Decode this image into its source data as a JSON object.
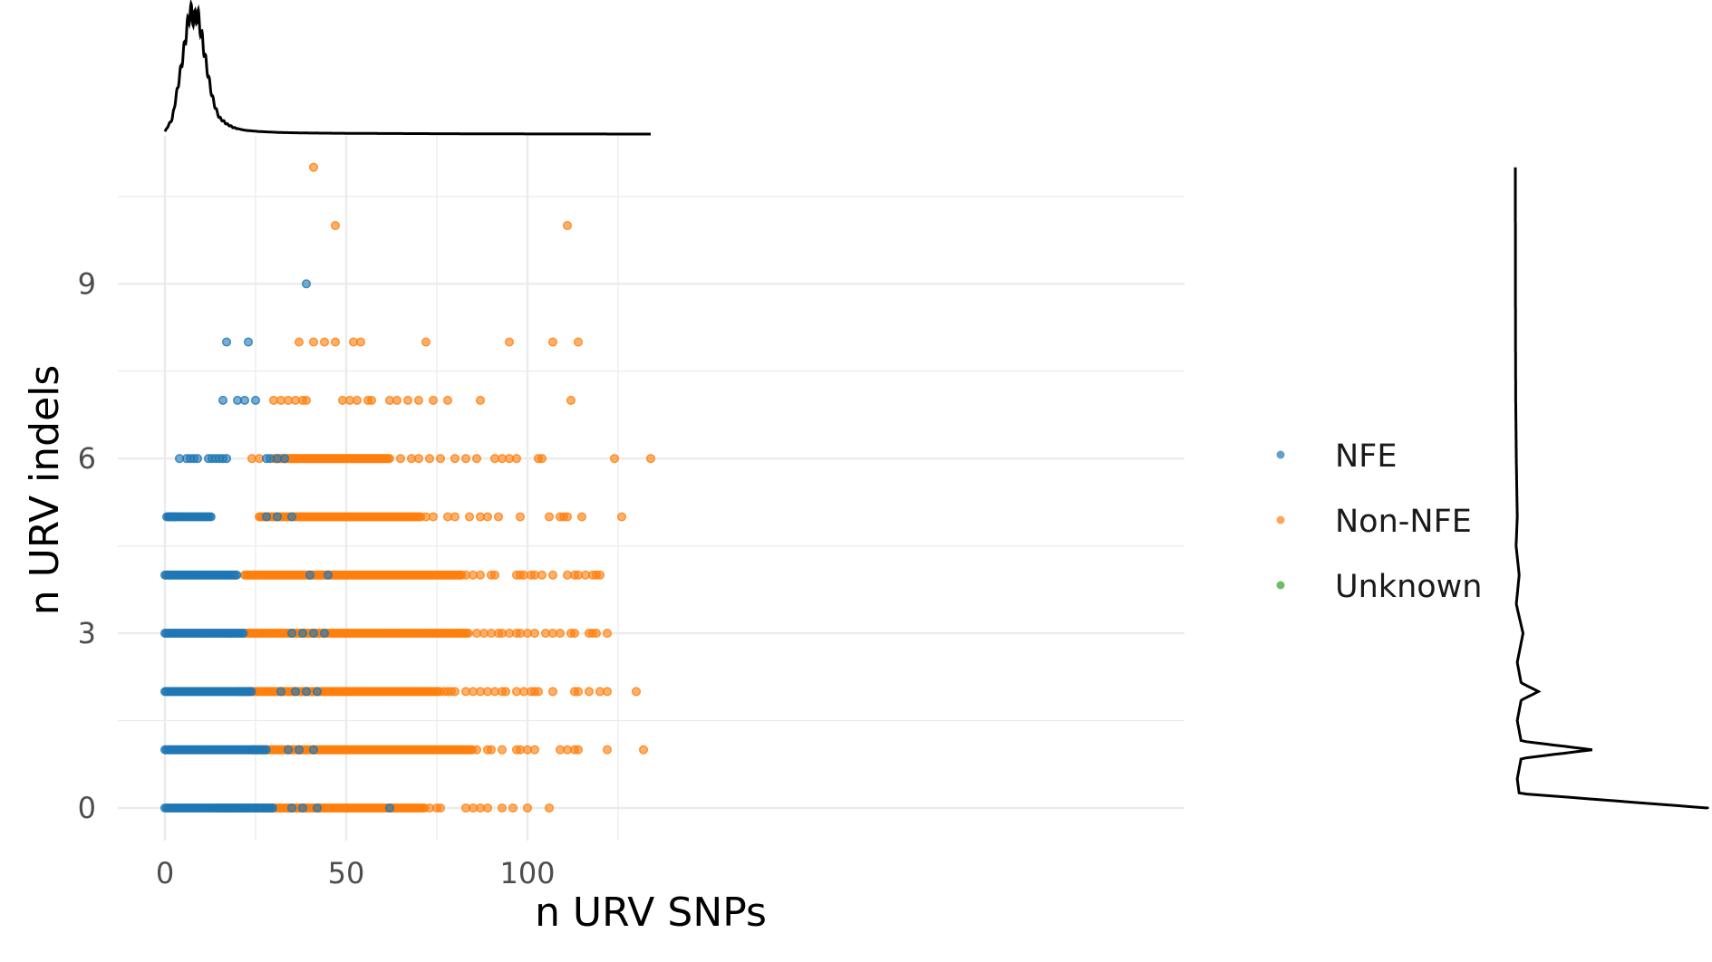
{
  "colors": {
    "NFE": "#1f77b4",
    "Non-NFE": "#ff7f0e",
    "Unknown": "#2ca02c",
    "grid": "#ebebeb"
  },
  "chart_data": {
    "type": "scatter",
    "title": "",
    "xlabel": "n URV SNPs",
    "ylabel": "n URV indels",
    "xlim": [
      -7,
      141
    ],
    "ylim": [
      -0.6,
      11.4
    ],
    "xticks": [
      0,
      50,
      100
    ],
    "xtick_labels": [
      "0",
      "50",
      "100"
    ],
    "yticks": [
      0,
      3,
      6,
      9
    ],
    "ytick_labels": [
      "0",
      "3",
      "6",
      "9"
    ],
    "grid": true,
    "legend": {
      "position": "right",
      "entries": [
        "NFE",
        "Non-NFE",
        "Unknown"
      ]
    },
    "marginals": {
      "top": "density of n URV SNPs",
      "right": "density of n URV indels"
    },
    "series": [
      {
        "name": "NFE",
        "color": "#1f77b4",
        "bands": [
          {
            "y": 0,
            "from": 0,
            "to": 30
          },
          {
            "y": 1,
            "from": 0,
            "to": 28
          },
          {
            "y": 2,
            "from": 0,
            "to": 24
          },
          {
            "y": 3,
            "from": 0,
            "to": 22
          },
          {
            "y": 4,
            "from": 0,
            "to": 20
          },
          {
            "y": 5,
            "from": 1,
            "to": 13
          }
        ],
        "points": [
          [
            0.5,
            5
          ],
          [
            1,
            5
          ],
          [
            1.5,
            5
          ],
          [
            2,
            5
          ],
          [
            3,
            5
          ],
          [
            4,
            6
          ],
          [
            6,
            6
          ],
          [
            7,
            6
          ],
          [
            8,
            6
          ],
          [
            9,
            6
          ],
          [
            12,
            6
          ],
          [
            13,
            6
          ],
          [
            14,
            6
          ],
          [
            15,
            6
          ],
          [
            16,
            6
          ],
          [
            17,
            6
          ],
          [
            16,
            7
          ],
          [
            20,
            7
          ],
          [
            22,
            7
          ],
          [
            25,
            7
          ],
          [
            17,
            8
          ],
          [
            23,
            8
          ],
          [
            39,
            9
          ],
          [
            28,
            6
          ],
          [
            29,
            6
          ],
          [
            31,
            6
          ],
          [
            33,
            6
          ],
          [
            28,
            5
          ],
          [
            31,
            5
          ],
          [
            35,
            5
          ],
          [
            35,
            3
          ],
          [
            38,
            3
          ],
          [
            41,
            3
          ],
          [
            44,
            3
          ],
          [
            32,
            2
          ],
          [
            36,
            2
          ],
          [
            39,
            2
          ],
          [
            42,
            2
          ],
          [
            34,
            1
          ],
          [
            37,
            1
          ],
          [
            41,
            1
          ],
          [
            35,
            0
          ],
          [
            38,
            0
          ],
          [
            42,
            0
          ],
          [
            62,
            0
          ],
          [
            45,
            4
          ],
          [
            40,
            4
          ]
        ]
      },
      {
        "name": "Non-NFE",
        "color": "#ff7f0e",
        "bands": [
          {
            "y": 0,
            "from": 14,
            "to": 72
          },
          {
            "y": 1,
            "from": 24,
            "to": 85
          },
          {
            "y": 2,
            "from": 20,
            "to": 76
          },
          {
            "y": 3,
            "from": 22,
            "to": 84
          },
          {
            "y": 4,
            "from": 22,
            "to": 82
          },
          {
            "y": 5,
            "from": 26,
            "to": 71
          },
          {
            "y": 6,
            "from": 30,
            "to": 62
          }
        ],
        "points": [
          [
            41,
            11
          ],
          [
            47,
            10
          ],
          [
            111,
            10
          ],
          [
            37,
            8
          ],
          [
            41,
            8
          ],
          [
            44,
            8
          ],
          [
            47,
            8
          ],
          [
            52,
            8
          ],
          [
            54,
            8
          ],
          [
            72,
            8
          ],
          [
            95,
            8
          ],
          [
            107,
            8
          ],
          [
            114,
            8
          ],
          [
            30,
            7
          ],
          [
            32,
            7
          ],
          [
            34,
            7
          ],
          [
            36,
            7
          ],
          [
            38,
            7
          ],
          [
            39,
            7
          ],
          [
            49,
            7
          ],
          [
            51,
            7
          ],
          [
            53,
            7
          ],
          [
            56,
            7
          ],
          [
            57,
            7
          ],
          [
            62,
            7
          ],
          [
            64,
            7
          ],
          [
            67,
            7
          ],
          [
            70,
            7
          ],
          [
            74,
            7
          ],
          [
            78,
            7
          ],
          [
            87,
            7
          ],
          [
            112,
            7
          ],
          [
            24,
            6
          ],
          [
            26,
            6
          ],
          [
            65,
            6
          ],
          [
            68,
            6
          ],
          [
            70,
            6
          ],
          [
            73,
            6
          ],
          [
            76,
            6
          ],
          [
            80,
            6
          ],
          [
            83,
            6
          ],
          [
            86,
            6
          ],
          [
            91,
            6
          ],
          [
            93,
            6
          ],
          [
            95,
            6
          ],
          [
            97,
            6
          ],
          [
            103,
            6
          ],
          [
            104,
            6
          ],
          [
            124,
            6
          ],
          [
            134,
            6
          ],
          [
            72,
            5
          ],
          [
            74,
            5
          ],
          [
            78,
            5
          ],
          [
            80,
            5
          ],
          [
            84,
            5
          ],
          [
            87,
            5
          ],
          [
            89,
            5
          ],
          [
            92,
            5
          ],
          [
            98,
            5
          ],
          [
            106,
            5
          ],
          [
            109,
            5
          ],
          [
            110,
            5
          ],
          [
            111,
            5
          ],
          [
            115,
            5
          ],
          [
            126,
            5
          ],
          [
            83,
            4
          ],
          [
            85,
            4
          ],
          [
            87,
            4
          ],
          [
            90,
            4
          ],
          [
            91,
            4
          ],
          [
            97,
            4
          ],
          [
            98,
            4
          ],
          [
            99,
            4
          ],
          [
            101,
            4
          ],
          [
            102,
            4
          ],
          [
            104,
            4
          ],
          [
            107,
            4
          ],
          [
            111,
            4
          ],
          [
            113,
            4
          ],
          [
            114,
            4
          ],
          [
            116,
            4
          ],
          [
            118,
            4
          ],
          [
            119,
            4
          ],
          [
            120,
            4
          ],
          [
            86,
            3
          ],
          [
            88,
            3
          ],
          [
            90,
            3
          ],
          [
            92,
            3
          ],
          [
            93,
            3
          ],
          [
            95,
            3
          ],
          [
            97,
            3
          ],
          [
            98,
            3
          ],
          [
            100,
            3
          ],
          [
            102,
            3
          ],
          [
            105,
            3
          ],
          [
            107,
            3
          ],
          [
            109,
            3
          ],
          [
            112,
            3
          ],
          [
            113,
            3
          ],
          [
            117,
            3
          ],
          [
            118,
            3
          ],
          [
            119,
            3
          ],
          [
            122,
            3
          ],
          [
            77,
            2
          ],
          [
            78,
            2
          ],
          [
            79,
            2
          ],
          [
            80,
            2
          ],
          [
            83,
            2
          ],
          [
            85,
            2
          ],
          [
            87,
            2
          ],
          [
            89,
            2
          ],
          [
            91,
            2
          ],
          [
            93,
            2
          ],
          [
            94,
            2
          ],
          [
            97,
            2
          ],
          [
            99,
            2
          ],
          [
            101,
            2
          ],
          [
            102,
            2
          ],
          [
            103,
            2
          ],
          [
            107,
            2
          ],
          [
            113,
            2
          ],
          [
            114,
            2
          ],
          [
            117,
            2
          ],
          [
            120,
            2
          ],
          [
            122,
            2
          ],
          [
            130,
            2
          ],
          [
            86,
            1
          ],
          [
            89,
            1
          ],
          [
            90,
            1
          ],
          [
            93,
            1
          ],
          [
            97,
            1
          ],
          [
            98,
            1
          ],
          [
            100,
            1
          ],
          [
            102,
            1
          ],
          [
            109,
            1
          ],
          [
            111,
            1
          ],
          [
            113,
            1
          ],
          [
            114,
            1
          ],
          [
            122,
            1
          ],
          [
            132,
            1
          ],
          [
            73,
            0
          ],
          [
            75,
            0
          ],
          [
            76,
            0
          ],
          [
            83,
            0
          ],
          [
            85,
            0
          ],
          [
            87,
            0
          ],
          [
            89,
            0
          ],
          [
            93,
            0
          ],
          [
            96,
            0
          ],
          [
            100,
            0
          ],
          [
            106,
            0
          ]
        ]
      },
      {
        "name": "Unknown",
        "color": "#2ca02c",
        "bands": [],
        "points": []
      }
    ],
    "marginal_x": [
      [
        0,
        0.02
      ],
      [
        2,
        0.12
      ],
      [
        3,
        0.28
      ],
      [
        4,
        0.45
      ],
      [
        5,
        0.62
      ],
      [
        6,
        0.82
      ],
      [
        7,
        0.98
      ],
      [
        8,
        0.9
      ],
      [
        9,
        0.95
      ],
      [
        10,
        0.8
      ],
      [
        11,
        0.62
      ],
      [
        12,
        0.45
      ],
      [
        13,
        0.3
      ],
      [
        14,
        0.2
      ],
      [
        15,
        0.13
      ],
      [
        17,
        0.08
      ],
      [
        19,
        0.05
      ],
      [
        22,
        0.03
      ],
      [
        26,
        0.02
      ],
      [
        32,
        0.012
      ],
      [
        40,
        0.008
      ],
      [
        55,
        0.005
      ],
      [
        75,
        0.003
      ],
      [
        100,
        0.001
      ],
      [
        134,
        0.0
      ]
    ],
    "marginal_y": [
      [
        0,
        1.0
      ],
      [
        0.25,
        0.02
      ],
      [
        0.5,
        0.01
      ],
      [
        0.85,
        0.03
      ],
      [
        1,
        0.4
      ],
      [
        1.15,
        0.03
      ],
      [
        1.5,
        0.01
      ],
      [
        1.85,
        0.03
      ],
      [
        2,
        0.12
      ],
      [
        2.15,
        0.03
      ],
      [
        2.5,
        0.01
      ],
      [
        3,
        0.04
      ],
      [
        3.5,
        0.005
      ],
      [
        4,
        0.02
      ],
      [
        4.5,
        0.004
      ],
      [
        5,
        0.01
      ],
      [
        6,
        0.005
      ],
      [
        7,
        0.002
      ],
      [
        8,
        0.001
      ],
      [
        9,
        0.0005
      ],
      [
        11,
        0.0
      ]
    ]
  }
}
